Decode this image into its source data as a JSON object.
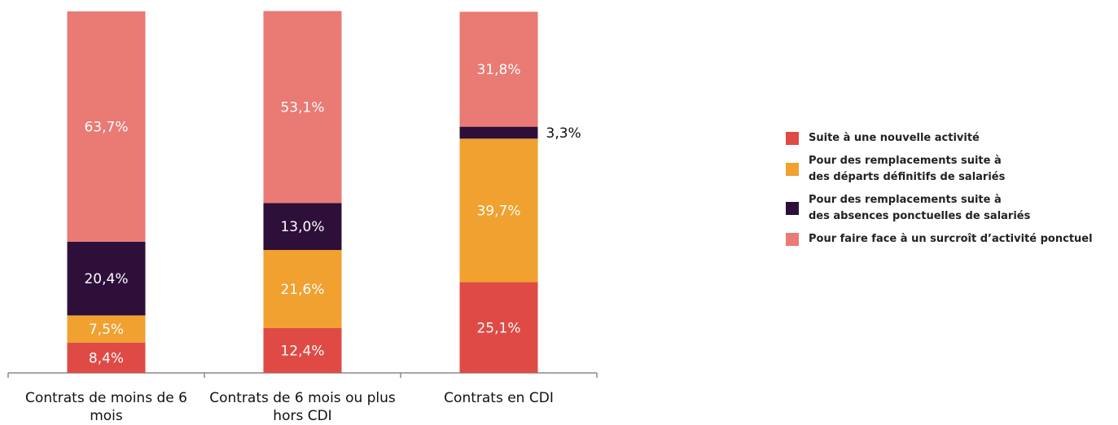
{
  "chart_data": {
    "type": "stacked_bar",
    "categories": [
      "Contrats de moins  de 6 mois",
      "Contrats de 6 mois ou plus hors  CDI",
      "Contrats en CDI"
    ],
    "ylim": [
      0,
      100
    ],
    "series": [
      {
        "name": "Suite à une nouvelle activité",
        "color": "#e04a45",
        "values": [
          8.4,
          12.4,
          25.1
        ],
        "value_labels": [
          "8,4%",
          "12,4%",
          "25,1%"
        ]
      },
      {
        "name": "Pour des remplacements suite à\ndes départs définitifs de salariés",
        "color": "#f0a130",
        "values": [
          7.5,
          21.6,
          39.7
        ],
        "value_labels": [
          "7,5%",
          "21,6%",
          "39,7%"
        ]
      },
      {
        "name": "Pour des remplacements suite à\ndes absences ponctuelles de salariés",
        "color": "#2e0f3a",
        "values": [
          20.4,
          13.0,
          3.3
        ],
        "value_labels": [
          "20,4%",
          "13,0%",
          "3,3%"
        ]
      },
      {
        "name": "Pour faire face à un surcroît d’activité ponctuel",
        "color": "#e97a74",
        "values": [
          63.7,
          53.1,
          31.8
        ],
        "value_labels": [
          "63,7%",
          "53,1%",
          "31,8%"
        ]
      }
    ]
  }
}
